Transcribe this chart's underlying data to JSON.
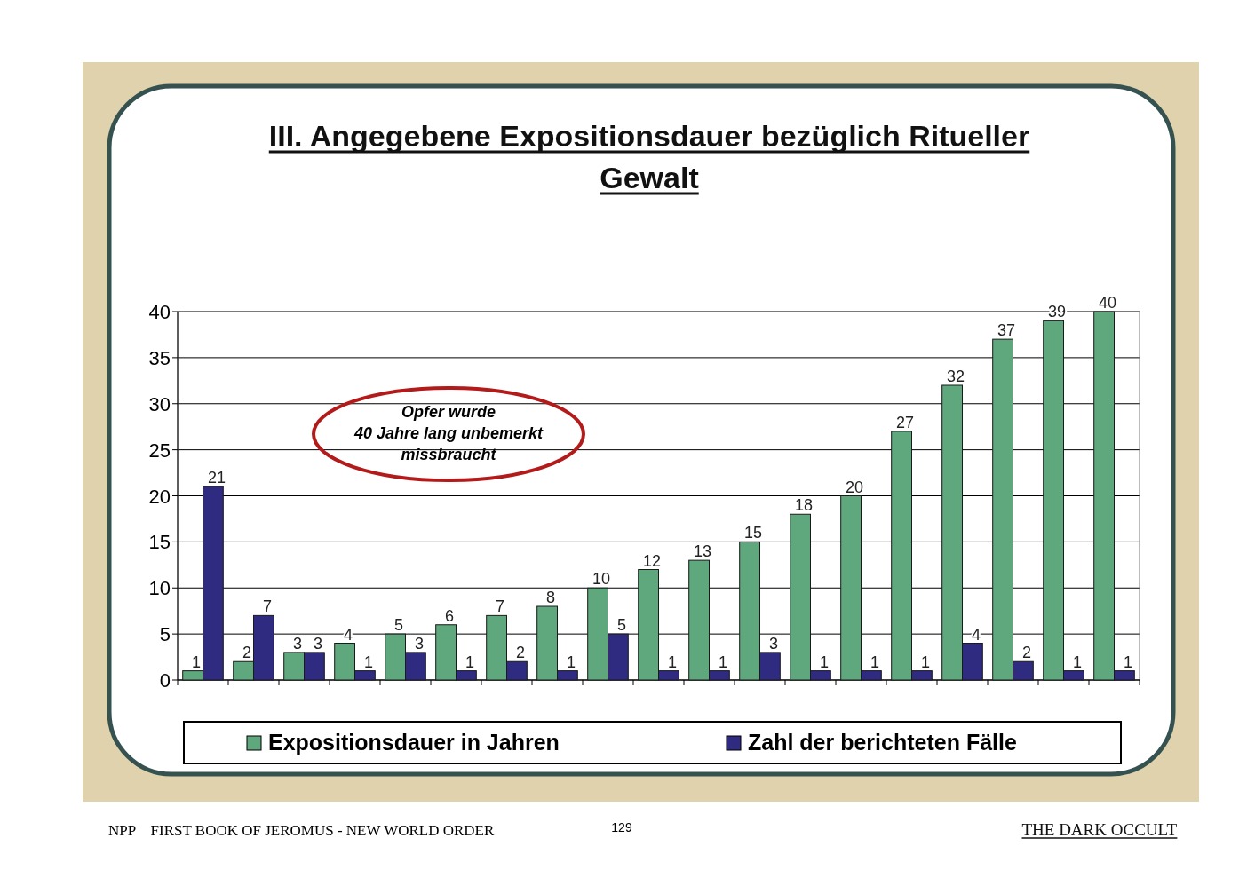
{
  "chart_data": {
    "type": "bar",
    "title": "III. Angegebene Expositionsdauer bezüglich Ritueller Gewalt",
    "categories": [
      null,
      null,
      null,
      null,
      null,
      null,
      null,
      null,
      null,
      null,
      null,
      null,
      null,
      null,
      null,
      null,
      null,
      null,
      null
    ],
    "series": [
      {
        "name": "Expositionsdauer in Jahren",
        "color": "#5fa77c",
        "values": [
          1,
          2,
          3,
          4,
          5,
          6,
          7,
          8,
          10,
          12,
          13,
          15,
          18,
          20,
          27,
          32,
          37,
          39,
          40
        ]
      },
      {
        "name": "Zahl der berichteten Fälle",
        "color": "#2e2b80",
        "values": [
          21,
          7,
          3,
          1,
          3,
          1,
          2,
          1,
          5,
          1,
          1,
          3,
          1,
          1,
          1,
          4,
          2,
          1,
          1
        ]
      }
    ],
    "ylim": [
      0,
      40
    ],
    "yticks": [
      0,
      5,
      10,
      15,
      20,
      25,
      30,
      35,
      40
    ],
    "grid": "y",
    "legend": "bottom",
    "data_labels": true,
    "annotations": [
      "Opfer wurde 40 Jahre lang unbemerkt missbraucht",
      "NPP    FIRST BOOK OF JEROMUS - NEW WORLD ORDER",
      "129",
      "THE DARK OCCULT"
    ]
  }
}
